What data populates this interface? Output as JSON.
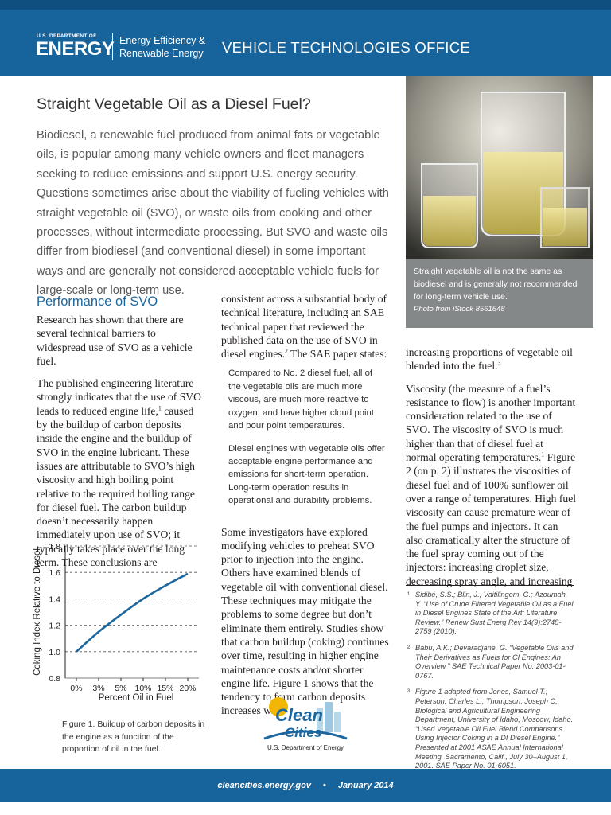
{
  "header": {
    "agency_small": "U.S. DEPARTMENT OF",
    "agency": "ENERGY",
    "office_line1": "Energy Efficiency &",
    "office_line2": "Renewable Energy",
    "title": "VEHICLE TECHNOLOGIES OFFICE"
  },
  "headline": "Straight Vegetable Oil as a Diesel Fuel?",
  "intro": "Biodiesel, a renewable fuel produced from animal fats or vegetable oils, is popular among many vehicle owners and fleet managers seeking to reduce emissions and support U.S. energy security. Questions sometimes arise about the viability of fueling vehicles with straight vegetable oil (SVO), or waste oils from cooking and other processes, without intermediate processing. But SVO and waste oils differ from biodiesel (and conventional diesel) in some important ways and are generally not considered acceptable vehicle fuels for large-scale or long-term use.",
  "photo": {
    "caption": "Straight vegetable oil is not the same as biodiesel and is generally not recommended for long-term vehicle use.",
    "credit": "Photo from iStock 8561648"
  },
  "section_heading": "Performance of SVO",
  "left_paragraphs": [
    [
      "Research has shown that there are several technical barriers to widespread use of SVO as a vehicle fuel."
    ],
    [
      "The published engineering literature strongly indicates that the use of SVO leads to reduced engine life,",
      "1",
      " caused by the buildup of carbon deposits inside the engine and the buildup of SVO in the engine lubricant. These issues are attributable to SVO’s high viscosity and high boiling point relative to the required boiling range for diesel fuel. The carbon buildup doesn’t necessarily happen immediately upon use of SVO; it typically takes place over the long term. These conclusions are"
    ]
  ],
  "middle_intro": [
    "consistent across a substantial body of technical literature, including an SAE technical paper that reviewed the published data on the use of SVO in diesel engines.",
    "2",
    " The SAE paper states:"
  ],
  "quotes": [
    "Compared to No. 2 diesel fuel, all of the vegetable oils are much more viscous, are much more reactive to oxygen, and have higher cloud point and pour point temperatures.",
    "Diesel engines with vegetable oils offer acceptable engine performance and emissions for short-term operation. Long-term operation results in operational and durability problems."
  ],
  "middle_paragraph": [
    "Some investigators have explored modifying vehicles to preheat SVO prior to injection into the engine. Others have examined blends of vegetable oil with conventional diesel. These techniques may mitigate the problems to some degree but don’t eliminate them entirely. Studies show that carbon buildup (coking) continues over time, resulting in higher engine maintenance costs and/or shorter engine life. Figure 1 shows that the tendency to form carbon deposits increases with"
  ],
  "right_paragraphs": [
    [
      "increasing proportions of vegetable oil blended into the fuel.",
      "3"
    ],
    [
      "Viscosity (the measure of a fuel’s resistance to flow) is another important consideration related to the use of SVO. The viscosity of SVO is much higher than that of diesel fuel at normal operating temperatures.",
      "1",
      " Figure 2 (on p. 2) illustrates the viscosities of diesel fuel and of 100% sunflower oil over a range of temperatures. High fuel viscosity can cause premature wear of the fuel pumps and injectors. It can also dramatically alter the structure of the fuel spray coming out of the injectors: increasing droplet size, decreasing spray angle, and increasing"
    ]
  ],
  "footnotes": [
    {
      "mark": "¹",
      "text": "Sidibé, S.S.; Blin, J.; Vaitilingom, G.; Azoumah, Y. “Use of Crude Filtered Vegetable Oil as a Fuel in Diesel Engines State of the Art: Literature Review.” Renew Sust Energ Rev 14(9):2748-2759 (2010)."
    },
    {
      "mark": "²",
      "text": "Babu, A.K.; Devaradjane, G. “Vegetable Oils and Their Derivatives as Fuels for CI Engines: An Overview.” SAE Technical Paper No. 2003-01-0767."
    },
    {
      "mark": "³",
      "text": "Figure 1 adapted from Jones, Samuel T.; Peterson, Charles L.; Thompson, Joseph C. Biological and Agricultural Engineering Department, University of Idaho, Moscow, Idaho. “Used Vegetable Oil Fuel Blend Comparisons Using Injector Coking in a DI Diesel Engine.” Presented at 2001 ASAE Annual International Meeting, Sacramento, Calif., July 30–August 1, 2001. SAE Paper No. 01-6051."
    }
  ],
  "chart_data": {
    "type": "line",
    "categories": [
      "0%",
      "3%",
      "5%",
      "10%",
      "15%",
      "20%"
    ],
    "values": [
      1.0,
      1.15,
      1.28,
      1.4,
      1.5,
      1.59
    ],
    "color": "#1d679e",
    "ylim": [
      0.8,
      1.8
    ],
    "yticks": [
      0.8,
      {
        "value": 1,
        "label": "1.0"
      },
      1.2,
      1.4,
      1.6,
      1.8
    ],
    "grid": true,
    "ylabel": "Coking Index Relative to Diesel",
    "xlabel": "Percent Oil in Fuel"
  },
  "figure_caption": "Figure 1. Buildup of carbon deposits in the engine as a function of the proportion of oil in the fuel.",
  "logo": {
    "word1": "Clean",
    "word2": "Cities",
    "org": "U.S. Department of Energy"
  },
  "footer": {
    "url": "cleancities.energy.gov",
    "separator": "•",
    "date": "January 2014"
  }
}
